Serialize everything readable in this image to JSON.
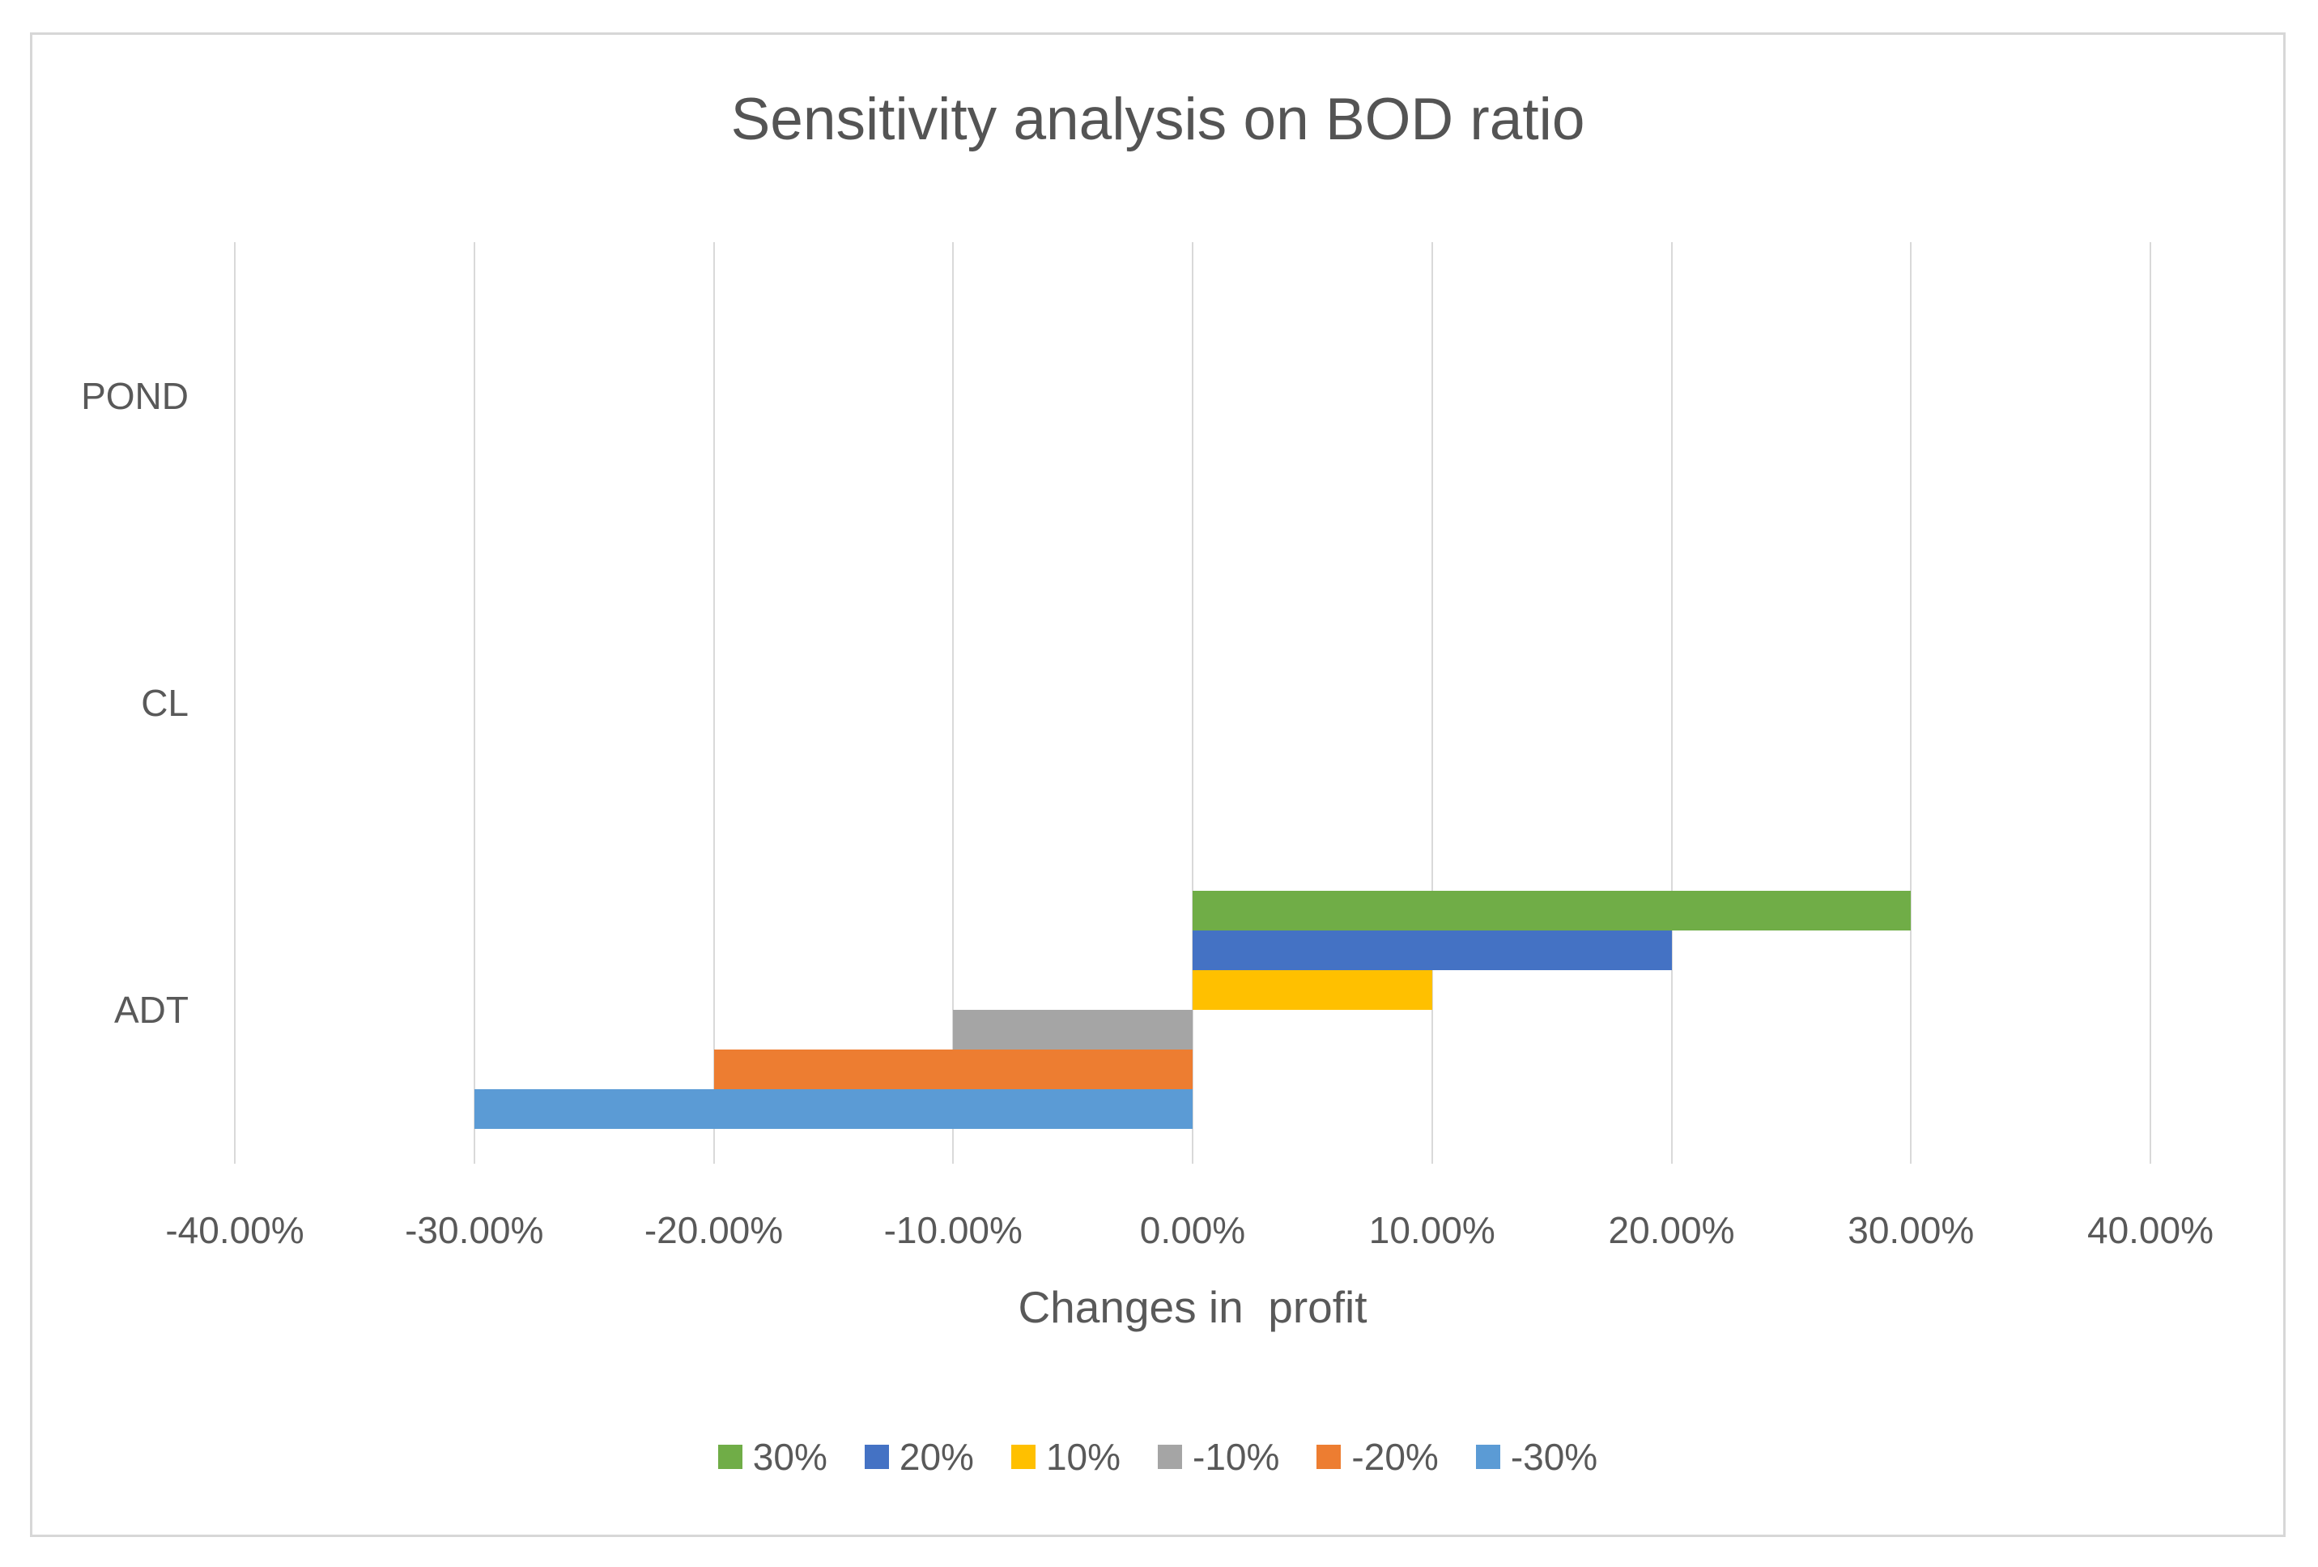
{
  "chart_data": {
    "type": "bar",
    "orientation": "horizontal",
    "title": "Sensitivity analysis on BOD ratio",
    "xlabel": "Changes in  profit",
    "ylabel": "",
    "categories": [
      "POND",
      "CL",
      "ADT"
    ],
    "series": [
      {
        "name": "30%",
        "color": "#70AD47",
        "values": [
          0,
          0,
          30
        ]
      },
      {
        "name": "20%",
        "color": "#4472C4",
        "values": [
          0,
          0,
          20
        ]
      },
      {
        "name": "10%",
        "color": "#FFC000",
        "values": [
          0,
          0,
          10
        ]
      },
      {
        "name": "-10%",
        "color": "#A5A5A5",
        "values": [
          0,
          0,
          -10
        ]
      },
      {
        "name": "-20%",
        "color": "#ED7D31",
        "values": [
          0,
          0,
          -20
        ]
      },
      {
        "name": "-30%",
        "color": "#5B9BD5",
        "values": [
          0,
          0,
          -30
        ]
      }
    ],
    "x_tick_labels": [
      "-40.00%",
      "-30.00%",
      "-20.00%",
      "-10.00%",
      "0.00%",
      "10.00%",
      "20.00%",
      "30.00%",
      "40.00%"
    ],
    "x_tick_values": [
      -40,
      -30,
      -20,
      -10,
      0,
      10,
      20,
      30,
      40
    ],
    "xlim": [
      -40,
      40
    ],
    "grid": "vertical",
    "gridline_color": "#D9D9D9",
    "text_color": "#595959",
    "legend_position": "bottom"
  }
}
